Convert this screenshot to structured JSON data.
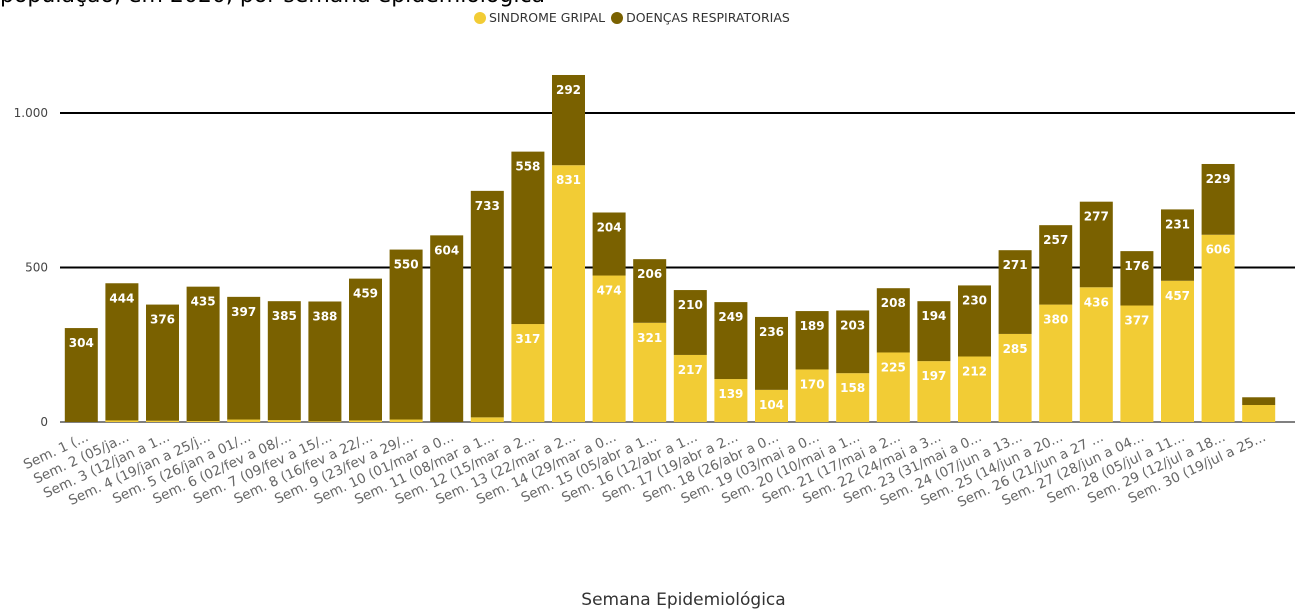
{
  "title_fragment": "população, em 2020, por semana epidemiológica",
  "legend": [
    {
      "label": "SINDROME GRIPAL",
      "color": "#f2cc35"
    },
    {
      "label": "DOENÇAS RESPIRATORIAS",
      "color": "#7a6100"
    }
  ],
  "chart_data": {
    "type": "bar",
    "stacked": true,
    "xlabel": "Semana Epidemiológica",
    "ylabel": "",
    "ylim": [
      0,
      1150
    ],
    "yticks": [
      0,
      500,
      1000
    ],
    "ytick_labels": [
      "0",
      "500",
      "1.000"
    ],
    "grid": true,
    "legend_position": "top-center",
    "categories": [
      "Sem. 1 (...",
      "Sem. 2 (05/ja...",
      "Sem. 3 (12/jan a 1...",
      "Sem. 4 (19/jan a 25/j...",
      "Sem. 5 (26/jan a 01/...",
      "Sem. 6 (02/fev a 08/...",
      "Sem. 7 (09/fev a 15/...",
      "Sem. 8 (16/fev a 22/...",
      "Sem. 9 (23/fev a 29/...",
      "Sem. 10 (01/mar a 0...",
      "Sem. 11 (08/mar a 1...",
      "Sem. 12 (15/mar a 2...",
      "Sem. 13 (22/mar a 2...",
      "Sem. 14 (29/mar a 0...",
      "Sem. 15 (05/abr a 1...",
      "Sem. 16 (12/abr a 1...",
      "Sem. 17 (19/abr a 2...",
      "Sem. 18 (26/abr a 0...",
      "Sem. 19 (03/mai a 0...",
      "Sem. 20 (10/mai a 1...",
      "Sem. 21 (17/mai a 2...",
      "Sem. 22 (24/mai a 3...",
      "Sem. 23 (31/mai a 0...",
      "Sem. 24 (07/jun a 13...",
      "Sem. 25 (14/jun a 20...",
      "Sem. 26 (21/jun a 27 ...",
      "Sem. 27 (28/jun a 04...",
      "Sem. 28 (05/jul a 11...",
      "Sem. 29 (12/jul a 18...",
      "Sem. 30 (19/jul a 25..."
    ],
    "series": [
      {
        "name": "SINDROME GRIPAL",
        "color": "#f2cc35",
        "values": [
          0,
          5,
          4,
          3,
          8,
          6,
          2,
          5,
          8,
          0,
          15,
          317,
          831,
          474,
          321,
          217,
          139,
          104,
          170,
          158,
          225,
          197,
          212,
          285,
          380,
          436,
          377,
          457,
          606,
          55
        ],
        "labels": [
          "",
          "",
          "",
          "",
          "",
          "",
          "",
          "",
          "",
          "",
          "",
          "317",
          "831",
          "474",
          "321",
          "217",
          "139",
          "104",
          "170",
          "158",
          "225",
          "197",
          "212",
          "285",
          "380",
          "436",
          "377",
          "457",
          "606",
          ""
        ]
      },
      {
        "name": "DOENÇAS RESPIRATORIAS",
        "color": "#7a6100",
        "values": [
          304,
          444,
          376,
          435,
          397,
          385,
          388,
          459,
          550,
          604,
          733,
          558,
          292,
          204,
          206,
          210,
          249,
          236,
          189,
          203,
          208,
          194,
          230,
          271,
          257,
          277,
          176,
          231,
          229,
          25
        ],
        "labels": [
          "304",
          "444",
          "376",
          "435",
          "397",
          "385",
          "388",
          "459",
          "550",
          "604",
          "733",
          "558",
          "292",
          "204",
          "206",
          "210",
          "249",
          "236",
          "189",
          "203",
          "208",
          "194",
          "230",
          "271",
          "257",
          "277",
          "176",
          "231",
          "229",
          ""
        ]
      }
    ]
  }
}
